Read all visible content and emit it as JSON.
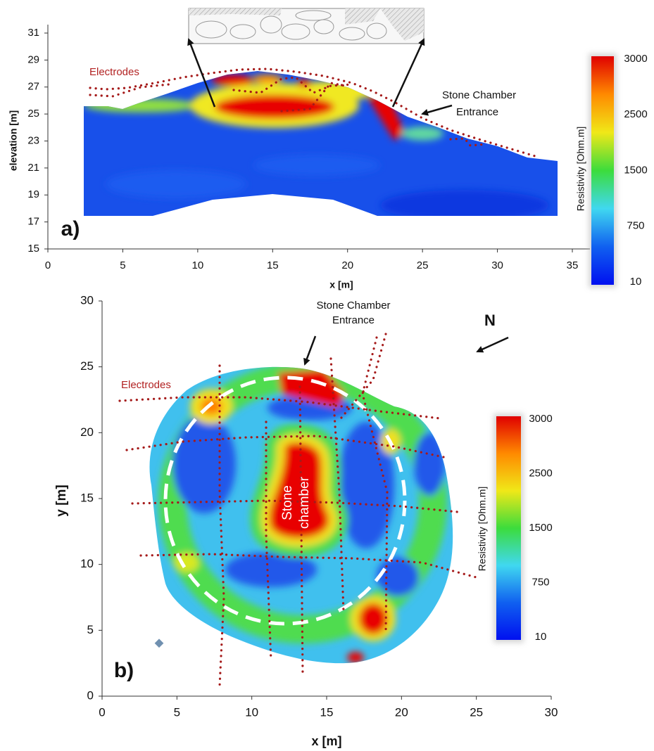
{
  "chart_data": [
    {
      "type": "heatmap",
      "panel_label": "a)",
      "xlabel": "x [m]",
      "ylabel": "elevation [m]",
      "xlim": [
        0,
        35
      ],
      "ylim": [
        15,
        31
      ],
      "xticks": [
        0,
        5,
        10,
        15,
        20,
        25,
        30,
        35
      ],
      "yticks": [
        15,
        17,
        19,
        21,
        23,
        25,
        27,
        29,
        31
      ],
      "annotations": [
        {
          "text": [
            "Electrodes"
          ],
          "color": "#b22222"
        },
        {
          "text": [
            "Stone Chamber",
            "Entrance"
          ],
          "color": "#111111"
        }
      ],
      "colorbar": {
        "label": "Resistivity [Ohm.m]",
        "ticks": [
          3000,
          2500,
          1500,
          750,
          10
        ],
        "colors": [
          "#e00000",
          "#ff8a00",
          "#f0e818",
          "#3cdc3c",
          "#40d8f0",
          "#1060f0",
          "#0010f0"
        ]
      }
    },
    {
      "type": "heatmap",
      "panel_label": "b)",
      "xlabel": "x [m]",
      "ylabel": "y [m]",
      "xlim": [
        0,
        30
      ],
      "ylim": [
        0,
        30
      ],
      "xticks": [
        0,
        5,
        10,
        15,
        20,
        25,
        30
      ],
      "yticks": [
        0,
        5,
        10,
        15,
        20,
        25,
        30
      ],
      "annotations": [
        {
          "text": [
            "Stone Chamber",
            "Entrance"
          ],
          "color": "#111111"
        },
        {
          "text": [
            "Electrodes"
          ],
          "color": "#b22222"
        },
        {
          "text": [
            "N"
          ],
          "color": "#111111"
        },
        {
          "text": [
            "Stone",
            "chamber"
          ],
          "color": "#ffffff"
        }
      ],
      "colorbar": {
        "label": "Resistivity [Ohm.m]",
        "ticks": [
          3000,
          2500,
          1500,
          750,
          10
        ],
        "colors": [
          "#e00000",
          "#ff8a00",
          "#f0e818",
          "#3cdc3c",
          "#40d8f0",
          "#1060f0",
          "#0010f0"
        ]
      }
    }
  ]
}
